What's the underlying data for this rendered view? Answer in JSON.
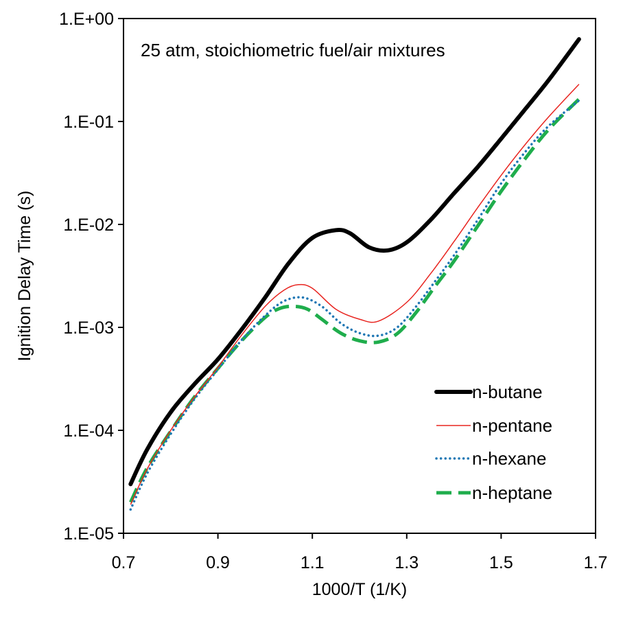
{
  "chart_data": {
    "type": "line",
    "title": "",
    "annotation": "25 atm, stoichiometric fuel/air mixtures",
    "xlabel": "1000/T (1/K)",
    "ylabel": "Ignition Delay Time (s)",
    "xlim": [
      0.7,
      1.7
    ],
    "ylim": [
      1e-05,
      1
    ],
    "yscale": "log",
    "xticks": [
      "0.7",
      "0.9",
      "1.1",
      "1.3",
      "1.5",
      "1.7"
    ],
    "yticks": [
      "1.E-05",
      "1.E-04",
      "1.E-03",
      "1.E-02",
      "1.E-01",
      "1.E+00"
    ],
    "grid": false,
    "legend_position": "bottom-right",
    "series": [
      {
        "name": "n-butane",
        "color": "#000000",
        "style": "solid-thick",
        "x": [
          0.715,
          0.75,
          0.8,
          0.85,
          0.9,
          0.95,
          1.0,
          1.05,
          1.1,
          1.15,
          1.18,
          1.22,
          1.26,
          1.3,
          1.35,
          1.4,
          1.45,
          1.5,
          1.55,
          1.6,
          1.665
        ],
        "y": [
          3e-05,
          6.5e-05,
          0.00015,
          0.00028,
          0.00049,
          0.00095,
          0.00195,
          0.0042,
          0.0074,
          0.0088,
          0.0082,
          0.006,
          0.0056,
          0.0067,
          0.011,
          0.02,
          0.036,
          0.068,
          0.13,
          0.25,
          0.63
        ]
      },
      {
        "name": "n-pentane",
        "color": "#e8231e",
        "style": "solid-thin",
        "x": [
          0.715,
          0.75,
          0.8,
          0.85,
          0.9,
          0.95,
          1.0,
          1.04,
          1.07,
          1.1,
          1.15,
          1.2,
          1.24,
          1.3,
          1.35,
          1.4,
          1.45,
          1.5,
          1.55,
          1.6,
          1.665
        ],
        "y": [
          1.9e-05,
          4.2e-05,
          0.0001,
          0.00021,
          0.00041,
          0.00084,
          0.0016,
          0.0023,
          0.0026,
          0.0024,
          0.0015,
          0.0012,
          0.00115,
          0.00175,
          0.0033,
          0.0068,
          0.0145,
          0.03,
          0.059,
          0.11,
          0.23
        ]
      },
      {
        "name": "n-hexane",
        "color": "#1f77b4",
        "style": "dotted",
        "x": [
          0.715,
          0.75,
          0.8,
          0.85,
          0.9,
          0.95,
          1.0,
          1.04,
          1.08,
          1.12,
          1.16,
          1.2,
          1.24,
          1.28,
          1.32,
          1.36,
          1.4,
          1.45,
          1.5,
          1.55,
          1.6,
          1.665
        ],
        "y": [
          1.7e-05,
          3.8e-05,
          9.2e-05,
          0.0002,
          0.00039,
          0.00075,
          0.0013,
          0.0018,
          0.00195,
          0.0016,
          0.0011,
          0.00088,
          0.00083,
          0.001,
          0.0016,
          0.0028,
          0.005,
          0.011,
          0.025,
          0.05,
          0.09,
          0.16
        ]
      },
      {
        "name": "n-heptane",
        "color": "#1fad4c",
        "style": "dashed",
        "x": [
          0.715,
          0.75,
          0.8,
          0.85,
          0.9,
          0.95,
          1.0,
          1.03,
          1.06,
          1.09,
          1.12,
          1.16,
          1.2,
          1.24,
          1.28,
          1.32,
          1.36,
          1.4,
          1.45,
          1.5,
          1.55,
          1.6,
          1.665
        ],
        "y": [
          2e-05,
          4.3e-05,
          9.8e-05,
          0.00021,
          0.0004,
          0.00074,
          0.00125,
          0.00152,
          0.0016,
          0.0015,
          0.0012,
          0.00088,
          0.00074,
          0.00072,
          0.00087,
          0.0014,
          0.0025,
          0.0044,
          0.0096,
          0.021,
          0.043,
          0.083,
          0.165
        ]
      }
    ]
  }
}
